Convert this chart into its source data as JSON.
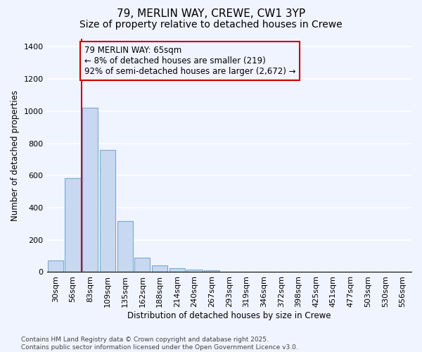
{
  "title": "79, MERLIN WAY, CREWE, CW1 3YP",
  "subtitle": "Size of property relative to detached houses in Crewe",
  "xlabel": "Distribution of detached houses by size in Crewe",
  "ylabel": "Number of detached properties",
  "categories": [
    "30sqm",
    "56sqm",
    "83sqm",
    "109sqm",
    "135sqm",
    "162sqm",
    "188sqm",
    "214sqm",
    "240sqm",
    "267sqm",
    "293sqm",
    "319sqm",
    "346sqm",
    "372sqm",
    "398sqm",
    "425sqm",
    "451sqm",
    "477sqm",
    "503sqm",
    "530sqm",
    "556sqm"
  ],
  "values": [
    70,
    585,
    1020,
    760,
    315,
    90,
    40,
    22,
    15,
    10,
    0,
    0,
    0,
    0,
    0,
    0,
    0,
    0,
    0,
    0,
    0
  ],
  "bar_color": "#c8d8f0",
  "bar_edge_color": "#7aaad0",
  "background_color": "#f0f4ff",
  "grid_color": "#ffffff",
  "vline_x": 1.5,
  "vline_color": "#cc0000",
  "annotation_text": "79 MERLIN WAY: 65sqm\n← 8% of detached houses are smaller (219)\n92% of semi-detached houses are larger (2,672) →",
  "annotation_box_color": "#cc0000",
  "ylim": [
    0,
    1450
  ],
  "yticks": [
    0,
    200,
    400,
    600,
    800,
    1000,
    1200,
    1400
  ],
  "footnote": "Contains HM Land Registry data © Crown copyright and database right 2025.\nContains public sector information licensed under the Open Government Licence v3.0.",
  "title_fontsize": 11,
  "subtitle_fontsize": 10,
  "label_fontsize": 8.5,
  "tick_fontsize": 8,
  "annot_fontsize": 8.5
}
